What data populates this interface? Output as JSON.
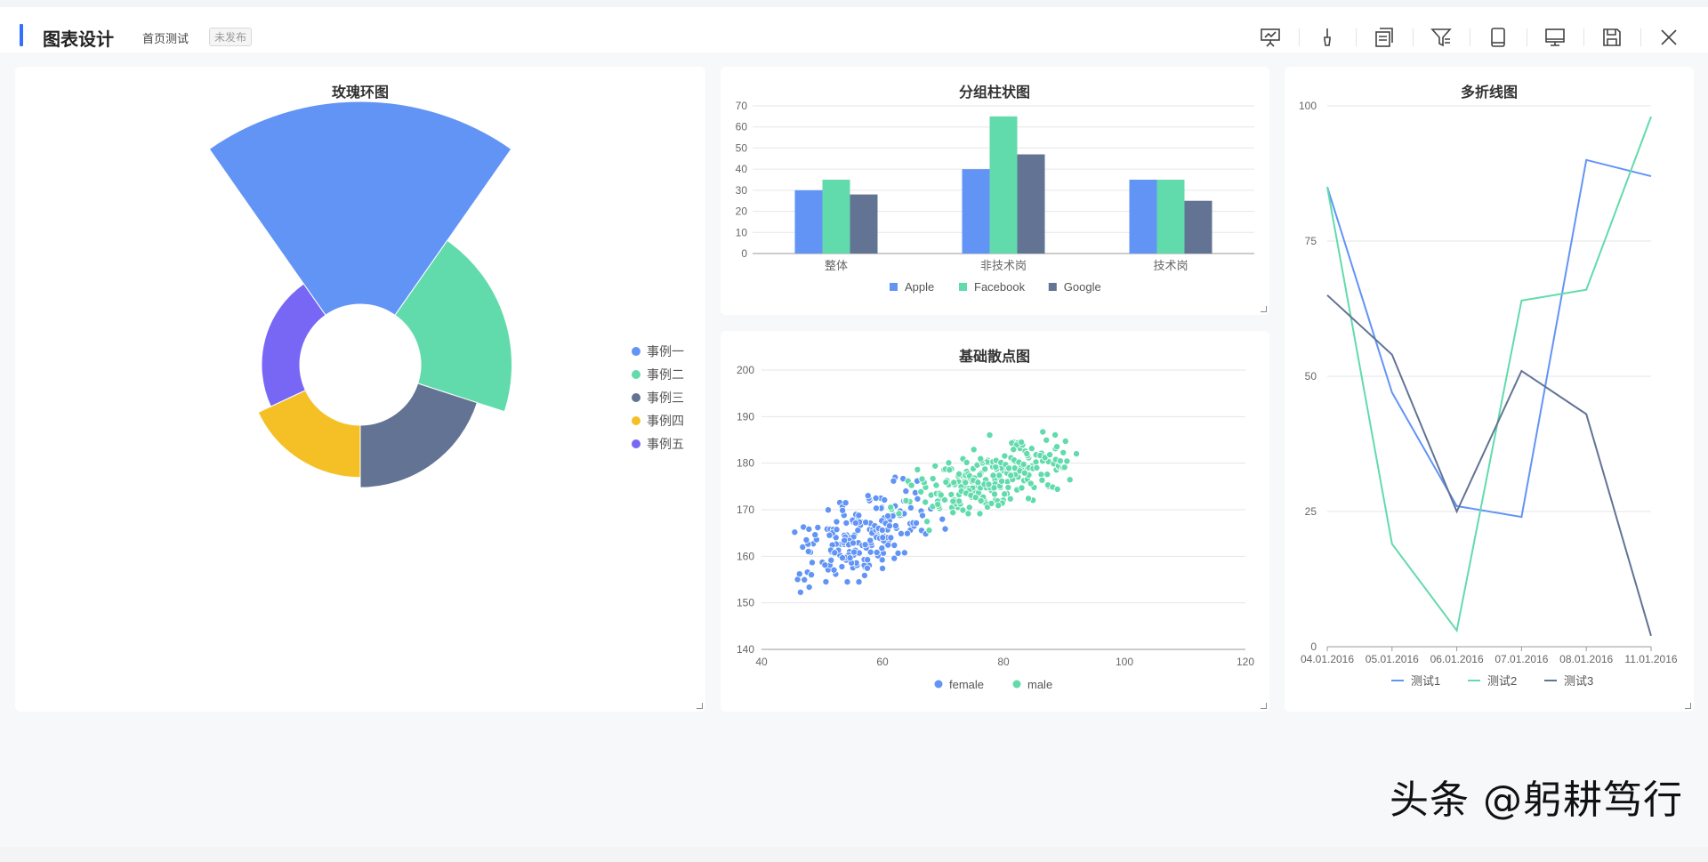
{
  "header": {
    "title": "图表设计",
    "page_name": "首页测试",
    "status": "未发布",
    "tools": [
      {
        "name": "presentation-icon"
      },
      {
        "name": "brush-icon"
      },
      {
        "name": "copy-icon"
      },
      {
        "name": "filter-icon"
      },
      {
        "name": "tablet-icon"
      },
      {
        "name": "desktop-icon"
      },
      {
        "name": "save-icon"
      },
      {
        "name": "close-icon"
      }
    ]
  },
  "watermark": "头条 @躬耕笃行",
  "colors": {
    "blue": "#6294f6",
    "green": "#62dbac",
    "slate": "#627394",
    "yellow": "#f5c026",
    "purple": "#7867f4",
    "accent": "#3370ff"
  },
  "chart_data": [
    {
      "id": "rose",
      "type": "pie",
      "variant": "nightingale-rose-ring",
      "title": "玫瑰环图",
      "legend_position": "right-middle",
      "categories": [
        "事例一",
        "事例二",
        "事例三",
        "事例四",
        "事例五"
      ],
      "values": [
        40,
        25,
        20,
        18,
        15
      ]
    },
    {
      "id": "bar",
      "type": "bar",
      "title": "分组柱状图",
      "categories": [
        "整体",
        "非技术岗",
        "技术岗"
      ],
      "series": [
        {
          "name": "Apple",
          "values": [
            30,
            40,
            35
          ]
        },
        {
          "name": "Facebook",
          "values": [
            35,
            65,
            35
          ]
        },
        {
          "name": "Google",
          "values": [
            28,
            47,
            25
          ]
        }
      ],
      "ylim": [
        0,
        70
      ],
      "yticks": [
        0,
        10,
        20,
        30,
        40,
        50,
        60,
        70
      ],
      "grid": true,
      "legend_position": "bottom"
    },
    {
      "id": "scatter",
      "type": "scatter",
      "title": "基础散点图",
      "series": [
        {
          "name": "female"
        },
        {
          "name": "male"
        }
      ],
      "xlim": [
        40,
        120
      ],
      "xticks": [
        40,
        60,
        80,
        100,
        120
      ],
      "ylim": [
        140,
        200
      ],
      "yticks": [
        140,
        150,
        160,
        170,
        180,
        190,
        200
      ],
      "grid": true,
      "legend_position": "bottom"
    },
    {
      "id": "line",
      "type": "line",
      "title": "多折线图",
      "categories": [
        "04.01.2016",
        "05.01.2016",
        "06.01.2016",
        "07.01.2016",
        "08.01.2016",
        "11.01.2016"
      ],
      "series": [
        {
          "name": "测试1",
          "values": [
            85,
            47,
            26,
            24,
            90,
            87
          ]
        },
        {
          "name": "测试2",
          "values": [
            85,
            19,
            3,
            64,
            66,
            98
          ]
        },
        {
          "name": "测试3",
          "values": [
            65,
            54,
            25,
            51,
            43,
            2
          ]
        }
      ],
      "ylim": [
        0,
        100
      ],
      "yticks": [
        0,
        25,
        50,
        75,
        100
      ],
      "grid": true,
      "legend_position": "bottom"
    }
  ]
}
